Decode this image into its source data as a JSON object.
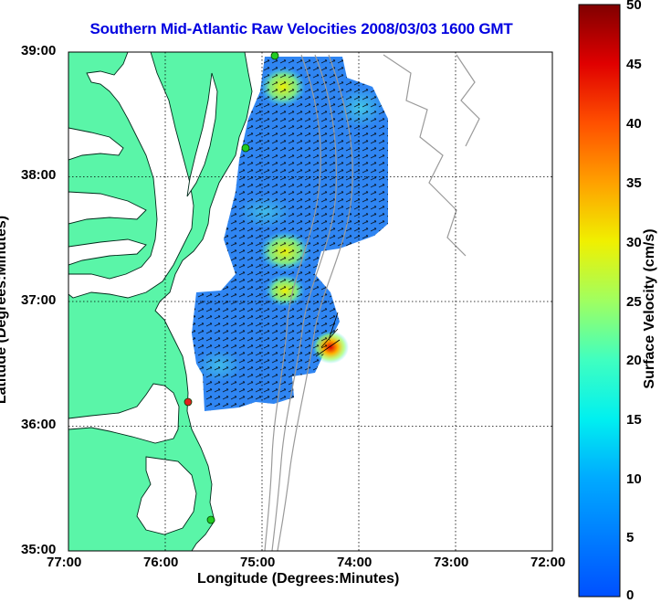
{
  "title": "Southern Mid-Atlantic Raw Velocities 2008/03/03 1600 GMT",
  "axes": {
    "xlabel": "Longitude (Degrees:Minutes)",
    "ylabel": "Latitude (Degrees:Minutes)",
    "x_ticks": [
      "77:00",
      "76:00",
      "75:00",
      "74:00",
      "73:00",
      "72:00"
    ],
    "y_ticks": [
      "39:00",
      "38:00",
      "37:00",
      "36:00",
      "35:00"
    ],
    "x_range_deg_west": [
      77,
      72
    ],
    "y_range_deg_north": [
      35,
      39
    ],
    "grid": "dotted"
  },
  "colorbar": {
    "label": "Surface Velocity (cm/s)",
    "ticks": [
      "50",
      "45",
      "40",
      "35",
      "30",
      "25",
      "20",
      "15",
      "10",
      "5",
      "0"
    ],
    "range": [
      0,
      50
    ],
    "colormap": "jet"
  },
  "colors": {
    "title": "#0000e0",
    "land": "#5af5a8",
    "bathymetry": "#999999",
    "station_active": "#22cc22",
    "station_inactive": "#e02020"
  },
  "stations": [
    {
      "lon": -74.87,
      "lat": 38.93,
      "status": "active"
    },
    {
      "lon": -75.13,
      "lat": 38.22,
      "status": "active"
    },
    {
      "lon": -75.81,
      "lat": 36.15,
      "status": "inactive"
    },
    {
      "lon": -75.5,
      "lat": 35.25,
      "status": "active"
    }
  ],
  "velocity_hotspots": [
    {
      "lon": -74.8,
      "lat": 37.3,
      "speed_cms": 25
    },
    {
      "lon": -74.7,
      "lat": 36.98,
      "speed_cms": 22
    },
    {
      "lon": -74.35,
      "lat": 36.6,
      "speed_cms": 40
    },
    {
      "lon": -74.9,
      "lat": 38.75,
      "speed_cms": 22
    }
  ]
}
